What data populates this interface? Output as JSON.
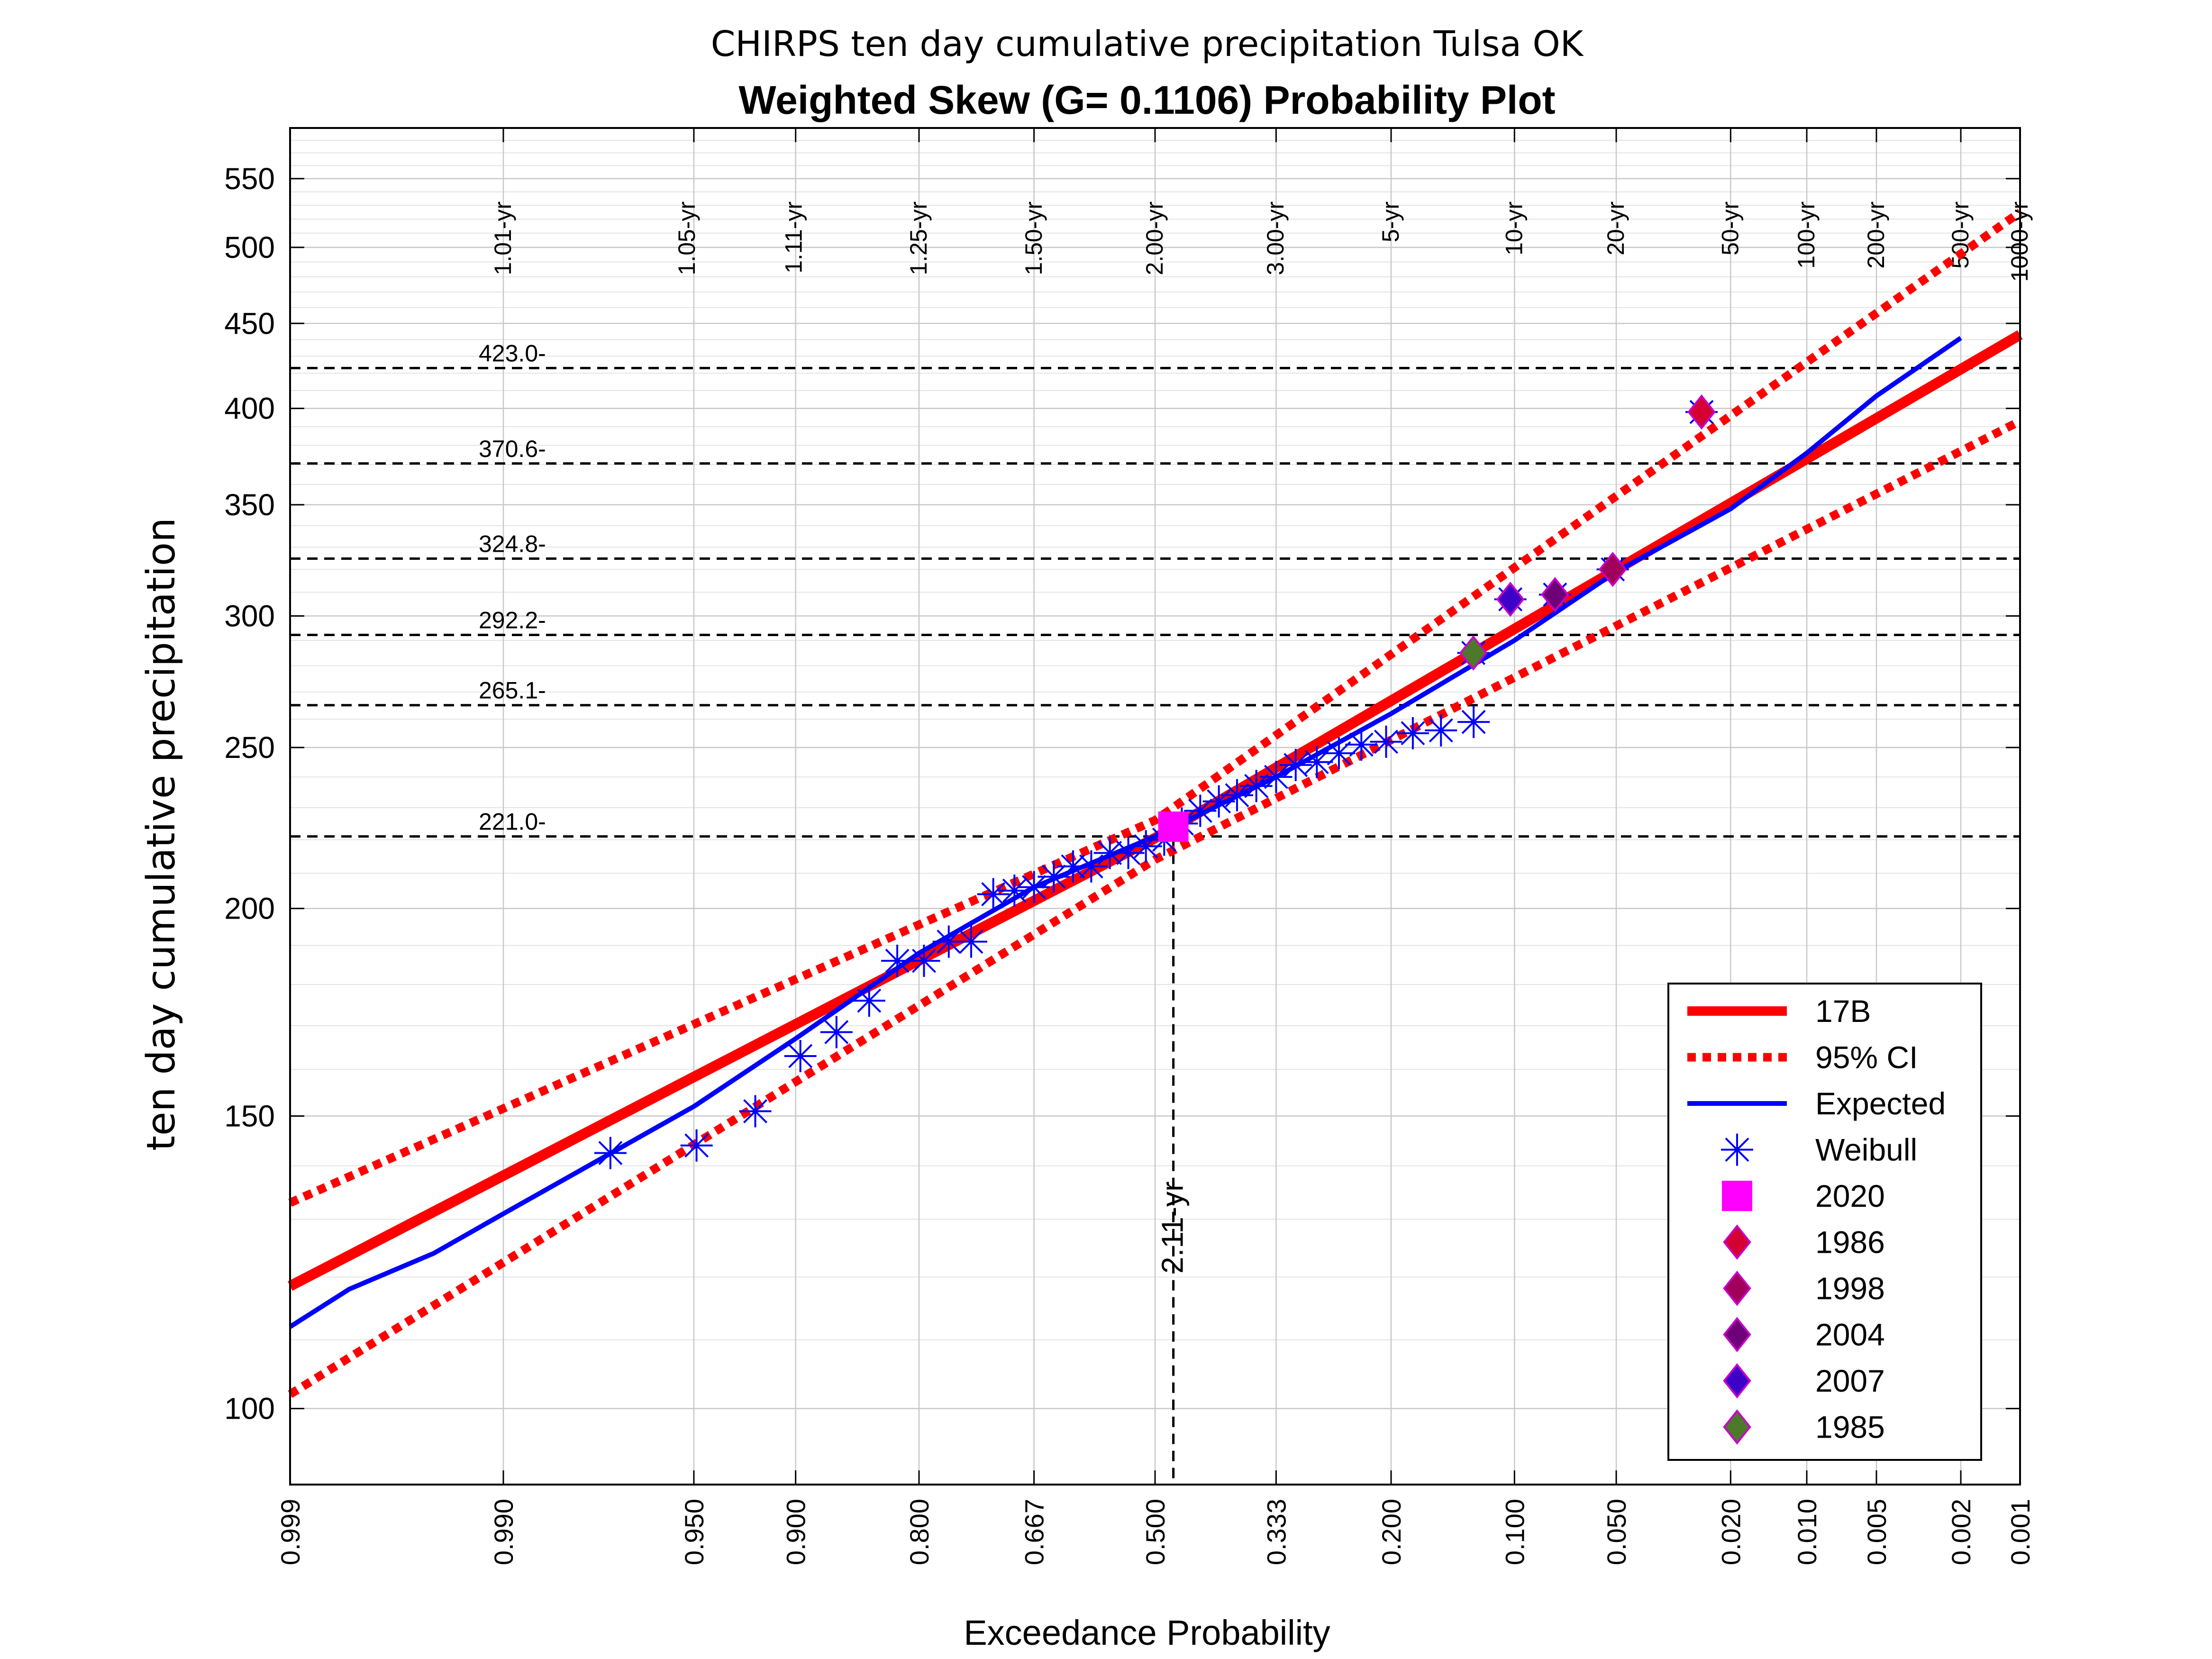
{
  "chart_data": {
    "type": "line",
    "title": "CHIRPS ten day cumulative precipitation Tulsa OK",
    "subtitle": "Weighted Skew (G= 0.1106) Probability Plot",
    "xlabel": "Exceedance Probability",
    "ylabel": "ten day cumulative precipitation",
    "x_scale": "normal-probability",
    "y_scale": "log",
    "xlim": [
      0.999,
      0.001
    ],
    "ylim": [
      90,
      590
    ],
    "grid": true,
    "legend_position": "bottom-right",
    "x_ticks": [
      {
        "p": 0.999,
        "label": "0.999"
      },
      {
        "p": 0.99,
        "label": "0.990"
      },
      {
        "p": 0.95,
        "label": "0.950"
      },
      {
        "p": 0.9,
        "label": "0.900"
      },
      {
        "p": 0.8,
        "label": "0.800"
      },
      {
        "p": 0.667,
        "label": "0.667"
      },
      {
        "p": 0.5,
        "label": "0.500"
      },
      {
        "p": 0.333,
        "label": "0.333"
      },
      {
        "p": 0.2,
        "label": "0.200"
      },
      {
        "p": 0.1,
        "label": "0.100"
      },
      {
        "p": 0.05,
        "label": "0.050"
      },
      {
        "p": 0.02,
        "label": "0.020"
      },
      {
        "p": 0.01,
        "label": "0.010"
      },
      {
        "p": 0.005,
        "label": "0.005"
      },
      {
        "p": 0.002,
        "label": "0.002"
      },
      {
        "p": 0.001,
        "label": "0.001"
      }
    ],
    "y_ticks": [
      {
        "v": 100,
        "label": "100"
      },
      {
        "v": 150,
        "label": "150"
      },
      {
        "v": 200,
        "label": "200"
      },
      {
        "v": 250,
        "label": "250"
      },
      {
        "v": 300,
        "label": "300"
      },
      {
        "v": 350,
        "label": "350"
      },
      {
        "v": 400,
        "label": "400"
      },
      {
        "v": 450,
        "label": "450"
      },
      {
        "v": 500,
        "label": "500"
      },
      {
        "v": 550,
        "label": "550"
      }
    ],
    "return_periods": [
      {
        "p": 0.99,
        "label": "1.01-yr"
      },
      {
        "p": 0.9524,
        "label": "1.05-yr"
      },
      {
        "p": 0.9009,
        "label": "1.11-yr"
      },
      {
        "p": 0.8,
        "label": "1.25-yr"
      },
      {
        "p": 0.6667,
        "label": "1.50-yr"
      },
      {
        "p": 0.5,
        "label": "2.00-yr"
      },
      {
        "p": 0.3333,
        "label": "3.00-yr"
      },
      {
        "p": 0.2,
        "label": "5-yr"
      },
      {
        "p": 0.1,
        "label": "10-yr"
      },
      {
        "p": 0.05,
        "label": "20-yr"
      },
      {
        "p": 0.02,
        "label": "50-yr"
      },
      {
        "p": 0.01,
        "label": "100-yr"
      },
      {
        "p": 0.005,
        "label": "200-yr"
      },
      {
        "p": 0.002,
        "label": "500-yr"
      },
      {
        "p": 0.001,
        "label": "1000-yr"
      }
    ],
    "reference_lines": [
      {
        "value": 423.0,
        "label": "423.0-"
      },
      {
        "value": 370.6,
        "label": "370.6-"
      },
      {
        "value": 324.8,
        "label": "324.8-"
      },
      {
        "value": 292.2,
        "label": "292.2-"
      },
      {
        "value": 265.1,
        "label": "265.1-"
      },
      {
        "value": 221.0,
        "label": "221.0-"
      }
    ],
    "event_marker": {
      "p": 0.474,
      "label": "2.11-yr",
      "value": 221.0
    },
    "series": [
      {
        "name": "17B",
        "style": "solid-thick",
        "color": "#ff0000",
        "points": [
          [
            0.999,
            118.5
          ],
          [
            0.5,
            220.5
          ],
          [
            0.001,
            443
          ]
        ]
      },
      {
        "name": "95% CI",
        "style": "dotted",
        "color": "#ff0000",
        "points_upper": [
          [
            0.999,
            133
          ],
          [
            0.5,
            226
          ],
          [
            0.001,
            525
          ]
        ],
        "points_lower": [
          [
            0.999,
            102
          ],
          [
            0.5,
            214
          ],
          [
            0.001,
            393
          ]
        ]
      },
      {
        "name": "Expected",
        "style": "solid",
        "color": "#0000ff",
        "points": [
          [
            0.999,
            112
          ],
          [
            0.998,
            118
          ],
          [
            0.995,
            124
          ],
          [
            0.99,
            131
          ],
          [
            0.95,
            152
          ],
          [
            0.9,
            167
          ],
          [
            0.8,
            188
          ],
          [
            0.667,
            206
          ],
          [
            0.5,
            221
          ],
          [
            0.333,
            240
          ],
          [
            0.2,
            262
          ],
          [
            0.1,
            290
          ],
          [
            0.05,
            319
          ],
          [
            0.02,
            348
          ],
          [
            0.01,
            376
          ],
          [
            0.005,
            407
          ],
          [
            0.002,
            441
          ]
        ]
      },
      {
        "name": "Weibull",
        "style": "marker-asterisk",
        "color": "#0000ff",
        "points": [
          [
            0.974,
            142.5
          ],
          [
            0.949,
            144
          ],
          [
            0.923,
            151
          ],
          [
            0.897,
            163
          ],
          [
            0.872,
            168.5
          ],
          [
            0.846,
            176
          ],
          [
            0.821,
            186
          ],
          [
            0.795,
            186
          ],
          [
            0.769,
            191
          ],
          [
            0.744,
            191
          ],
          [
            0.718,
            204
          ],
          [
            0.692,
            205
          ],
          [
            0.667,
            206
          ],
          [
            0.641,
            209
          ],
          [
            0.615,
            212
          ],
          [
            0.59,
            212
          ],
          [
            0.564,
            216
          ],
          [
            0.538,
            216
          ],
          [
            0.513,
            218
          ],
          [
            0.487,
            220
          ],
          [
            0.462,
            225
          ],
          [
            0.436,
            229
          ],
          [
            0.41,
            232
          ],
          [
            0.385,
            234
          ],
          [
            0.359,
            237
          ],
          [
            0.333,
            240
          ],
          [
            0.308,
            244
          ],
          [
            0.282,
            245
          ],
          [
            0.256,
            248
          ],
          [
            0.231,
            251
          ],
          [
            0.205,
            252
          ],
          [
            0.179,
            255
          ],
          [
            0.154,
            256
          ],
          [
            0.128,
            259
          ]
        ]
      },
      {
        "name": "2020",
        "style": "marker-square",
        "color": "#ff00ff",
        "points": [
          [
            0.474,
            224
          ]
        ]
      },
      {
        "name": "1986",
        "style": "marker-diamond",
        "color": "#d40032",
        "points": [
          [
            0.0256,
            398
          ]
        ]
      },
      {
        "name": "1998",
        "style": "marker-diamond",
        "color": "#a0005a",
        "points": [
          [
            0.0513,
            320
          ]
        ]
      },
      {
        "name": "2004",
        "style": "marker-diamond",
        "color": "#6e0078",
        "points": [
          [
            0.0769,
            309
          ]
        ]
      },
      {
        "name": "2007",
        "style": "marker-diamond",
        "color": "#3c00c8",
        "points": [
          [
            0.1026,
            307
          ]
        ]
      },
      {
        "name": "1985",
        "style": "marker-diamond",
        "color": "#4d7a2a",
        "points": [
          [
            0.1282,
            285
          ]
        ]
      }
    ]
  }
}
